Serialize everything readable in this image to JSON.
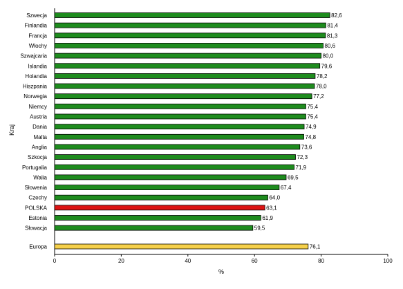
{
  "chart_data": {
    "type": "bar",
    "orientation": "horizontal",
    "categories": [
      "Szwecja",
      "Finlandia",
      "Francja",
      "Włochy",
      "Szwajcaria",
      "Islandia",
      "Holandia",
      "Hiszpania",
      "Norwegia",
      "Niemcy",
      "Austria",
      "Dania",
      "Malta",
      "Anglia",
      "Szkocja",
      "Portugalia",
      "Walia",
      "Słowenia",
      "Czechy",
      "POLSKA",
      "Estonia",
      "Słowacja",
      "Europa"
    ],
    "values": [
      82.6,
      81.4,
      81.3,
      80.6,
      80.0,
      79.6,
      78.2,
      78.0,
      77.2,
      75.4,
      75.4,
      74.9,
      74.8,
      73.6,
      72.3,
      71.9,
      69.5,
      67.4,
      64.0,
      63.1,
      61.9,
      59.5,
      76.1
    ],
    "value_labels": [
      "82,6",
      "81,4",
      "81,3",
      "80,6",
      "80,0",
      "79,6",
      "78,2",
      "78,0",
      "77,2",
      "75,4",
      "75,4",
      "74,9",
      "74,8",
      "73,6",
      "72,3",
      "71,9",
      "69,5",
      "67,4",
      "64,0",
      "63,1",
      "61,9",
      "59,5",
      "76,1"
    ],
    "bar_colors": [
      "#1e8c1e",
      "#1e8c1e",
      "#1e8c1e",
      "#1e8c1e",
      "#1e8c1e",
      "#1e8c1e",
      "#1e8c1e",
      "#1e8c1e",
      "#1e8c1e",
      "#1e8c1e",
      "#1e8c1e",
      "#1e8c1e",
      "#1e8c1e",
      "#1e8c1e",
      "#1e8c1e",
      "#1e8c1e",
      "#1e8c1e",
      "#1e8c1e",
      "#1e8c1e",
      "#dd1414",
      "#1e8c1e",
      "#1e8c1e",
      "#f5d04a"
    ],
    "title": "",
    "xlabel": "%",
    "ylabel": "Kraj",
    "xlim": [
      0,
      100
    ],
    "xticks": [
      "0",
      "20",
      "40",
      "60",
      "80",
      "100"
    ],
    "xtick_values": [
      0,
      20,
      40,
      60,
      80,
      100
    ],
    "grid": false,
    "legend": "none"
  }
}
